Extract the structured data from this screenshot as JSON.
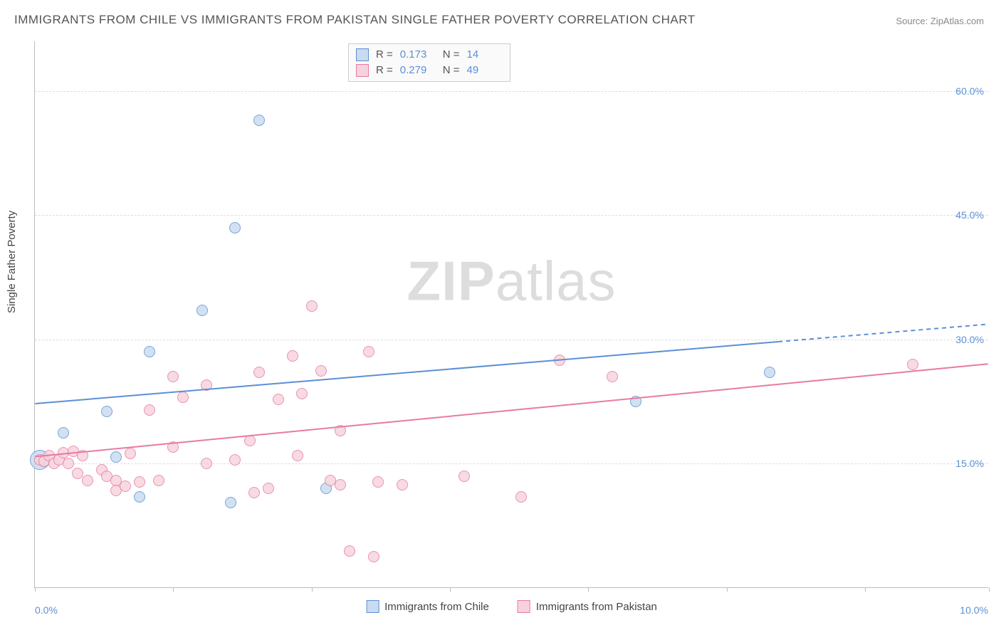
{
  "title": "IMMIGRANTS FROM CHILE VS IMMIGRANTS FROM PAKISTAN SINGLE FATHER POVERTY CORRELATION CHART",
  "source": "Source: ZipAtlas.com",
  "ylabel": "Single Father Poverty",
  "watermark_bold": "ZIP",
  "watermark_rest": "atlas",
  "chart": {
    "type": "scatter",
    "xlim": [
      0,
      10
    ],
    "ylim": [
      0,
      66
    ],
    "xtick_positions": [
      0,
      1.45,
      2.9,
      4.35,
      5.8,
      7.25,
      8.7,
      10
    ],
    "xtick_labels": {
      "left": "0.0%",
      "right": "10.0%"
    },
    "ytick_positions": [
      15,
      30,
      45,
      60
    ],
    "ytick_labels": [
      "15.0%",
      "30.0%",
      "45.0%",
      "60.0%"
    ],
    "grid_color": "#dddddd",
    "axis_color": "#bbbbbb",
    "background_color": "#ffffff",
    "label_color": "#5b8fd6",
    "marker_radius": 8,
    "marker_stroke_width": 1.2,
    "trend_line_width": 2
  },
  "series": [
    {
      "name": "Immigrants from Chile",
      "fill": "#c9dbf0",
      "stroke": "#5b8fd6",
      "R": "0.173",
      "N": "14",
      "trend": {
        "y_at_x0": 22.2,
        "y_at_x10": 31.8,
        "solid_until_x": 7.8
      },
      "points": [
        {
          "x": 0.05,
          "y": 15.5,
          "r": 14
        },
        {
          "x": 0.1,
          "y": 15.3
        },
        {
          "x": 0.3,
          "y": 18.7
        },
        {
          "x": 0.75,
          "y": 21.3
        },
        {
          "x": 0.85,
          "y": 15.8
        },
        {
          "x": 1.1,
          "y": 11.0
        },
        {
          "x": 1.2,
          "y": 28.5
        },
        {
          "x": 1.75,
          "y": 33.5
        },
        {
          "x": 2.05,
          "y": 10.3
        },
        {
          "x": 2.1,
          "y": 43.5
        },
        {
          "x": 2.35,
          "y": 56.5
        },
        {
          "x": 3.05,
          "y": 12.0
        },
        {
          "x": 6.3,
          "y": 22.5
        },
        {
          "x": 7.7,
          "y": 26.0
        }
      ]
    },
    {
      "name": "Immigrants from Pakistan",
      "fill": "#f6d3dc",
      "stroke": "#e77ba0",
      "R": "0.279",
      "N": "49",
      "trend": {
        "y_at_x0": 15.8,
        "y_at_x10": 27.0,
        "solid_until_x": 10
      },
      "points": [
        {
          "x": 0.05,
          "y": 15.5
        },
        {
          "x": 0.1,
          "y": 15.3
        },
        {
          "x": 0.15,
          "y": 16.0
        },
        {
          "x": 0.2,
          "y": 15.0
        },
        {
          "x": 0.25,
          "y": 15.5
        },
        {
          "x": 0.3,
          "y": 16.3
        },
        {
          "x": 0.35,
          "y": 15.0
        },
        {
          "x": 0.4,
          "y": 16.5
        },
        {
          "x": 0.45,
          "y": 13.8
        },
        {
          "x": 0.5,
          "y": 16.0
        },
        {
          "x": 0.55,
          "y": 13.0
        },
        {
          "x": 0.7,
          "y": 14.3
        },
        {
          "x": 0.75,
          "y": 13.5
        },
        {
          "x": 0.85,
          "y": 13.0
        },
        {
          "x": 0.85,
          "y": 11.8
        },
        {
          "x": 0.95,
          "y": 12.3
        },
        {
          "x": 1.0,
          "y": 16.2
        },
        {
          "x": 1.1,
          "y": 12.8
        },
        {
          "x": 1.2,
          "y": 21.5
        },
        {
          "x": 1.3,
          "y": 13.0
        },
        {
          "x": 1.45,
          "y": 17.0
        },
        {
          "x": 1.45,
          "y": 25.5
        },
        {
          "x": 1.55,
          "y": 23.0
        },
        {
          "x": 1.8,
          "y": 15.0
        },
        {
          "x": 1.8,
          "y": 24.5
        },
        {
          "x": 2.1,
          "y": 15.5
        },
        {
          "x": 2.25,
          "y": 17.8
        },
        {
          "x": 2.3,
          "y": 11.5
        },
        {
          "x": 2.35,
          "y": 26.0
        },
        {
          "x": 2.45,
          "y": 12.0
        },
        {
          "x": 2.55,
          "y": 22.8
        },
        {
          "x": 2.7,
          "y": 28.0
        },
        {
          "x": 2.75,
          "y": 16.0
        },
        {
          "x": 2.8,
          "y": 23.5
        },
        {
          "x": 2.9,
          "y": 34.0
        },
        {
          "x": 3.0,
          "y": 26.2
        },
        {
          "x": 3.1,
          "y": 13.0
        },
        {
          "x": 3.2,
          "y": 12.5
        },
        {
          "x": 3.2,
          "y": 19.0
        },
        {
          "x": 3.3,
          "y": 4.5
        },
        {
          "x": 3.5,
          "y": 28.5
        },
        {
          "x": 3.55,
          "y": 3.8
        },
        {
          "x": 3.6,
          "y": 12.8
        },
        {
          "x": 3.85,
          "y": 12.5
        },
        {
          "x": 4.5,
          "y": 13.5
        },
        {
          "x": 5.1,
          "y": 11.0
        },
        {
          "x": 5.5,
          "y": 27.5
        },
        {
          "x": 6.05,
          "y": 25.5
        },
        {
          "x": 9.2,
          "y": 27.0
        }
      ]
    }
  ],
  "stats_labels": {
    "R": "R  =",
    "N": "N  ="
  }
}
